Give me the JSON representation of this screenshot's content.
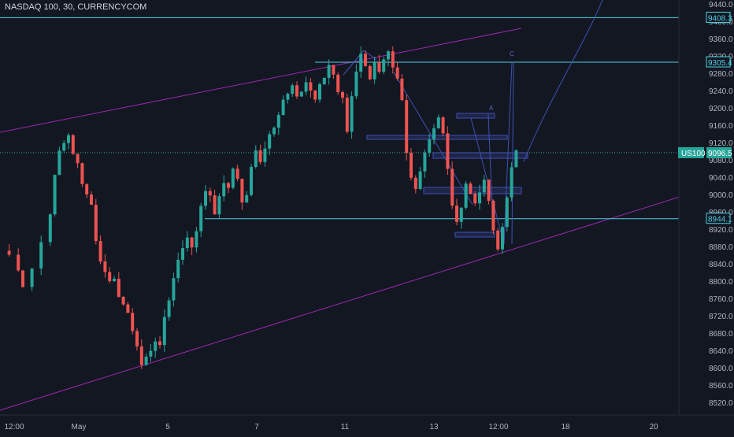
{
  "header": {
    "symbol_title": "NASDAQ 100, 30, CURRENCYCOM"
  },
  "colors": {
    "background": "#131722",
    "axis_text": "#b2b5be",
    "up_candle": "#26a69a",
    "down_candle": "#ef5350",
    "channel": "#9c27b0",
    "level_line": "#4dd0e1",
    "last_price_line": "#26a69a",
    "drawing": "#3f51b5",
    "tag_bg": "#26a69a"
  },
  "price_scale": {
    "ticks": [
      "9440.0",
      "9400.0",
      "9360.0",
      "9320.0",
      "9280.0",
      "9240.0",
      "9200.0",
      "9160.0",
      "9120.0",
      "9080.0",
      "9040.0",
      "9000.0",
      "8960.0",
      "8920.0",
      "8880.0",
      "8840.0",
      "8800.0",
      "8760.0",
      "8720.0",
      "8680.0",
      "8640.0",
      "8600.0",
      "8560.0",
      "8520.0"
    ],
    "level_tags": [
      "9408.3",
      "9305.4",
      "8944.1"
    ],
    "last_price": "9096.5",
    "symbol_tag": "US100"
  },
  "time_scale": {
    "ticks": [
      "12:00",
      "May",
      "5",
      "7",
      "11",
      "13",
      "12:00",
      "18",
      "20"
    ]
  },
  "annotations": {
    "wave_a": "A",
    "wave_c": "C"
  },
  "chart_data": {
    "type": "candlestick",
    "symbol": "NASDAQ 100",
    "interval": "30",
    "source": "CURRENCYCOM",
    "ylim": [
      8500,
      9460
    ],
    "last_price": 9096.5,
    "horizontal_levels": [
      9408.3,
      9305.4,
      8944.1
    ],
    "price_path": [
      [
        0,
        8870
      ],
      [
        2,
        8860
      ],
      [
        4,
        8830
      ],
      [
        5,
        8790
      ],
      [
        7,
        8830
      ],
      [
        9,
        8890
      ],
      [
        11,
        8960
      ],
      [
        12,
        9040
      ],
      [
        13,
        9100
      ],
      [
        14,
        9120
      ],
      [
        15,
        9140
      ],
      [
        16,
        9090
      ],
      [
        17,
        9070
      ],
      [
        18,
        9030
      ],
      [
        19,
        9000
      ],
      [
        20,
        8980
      ],
      [
        21,
        8890
      ],
      [
        22,
        8850
      ],
      [
        23,
        8820
      ],
      [
        24,
        8800
      ],
      [
        25,
        8810
      ],
      [
        26,
        8770
      ],
      [
        27,
        8740
      ],
      [
        28,
        8720
      ],
      [
        29,
        8690
      ],
      [
        30,
        8650
      ],
      [
        31,
        8600
      ],
      [
        32,
        8630
      ],
      [
        33,
        8640
      ],
      [
        34,
        8660
      ],
      [
        35,
        8650
      ],
      [
        36,
        8720
      ],
      [
        37,
        8760
      ],
      [
        38,
        8800
      ],
      [
        39,
        8850
      ],
      [
        40,
        8880
      ],
      [
        41,
        8900
      ],
      [
        42,
        8880
      ],
      [
        43,
        8920
      ],
      [
        44,
        8970
      ],
      [
        45,
        9010
      ],
      [
        46,
        9000
      ],
      [
        47,
        8960
      ],
      [
        48,
        8990
      ],
      [
        49,
        9030
      ],
      [
        50,
        9010
      ],
      [
        51,
        9060
      ],
      [
        52,
        9040
      ],
      [
        53,
        8980
      ],
      [
        54,
        9000
      ],
      [
        55,
        9060
      ],
      [
        56,
        9100
      ],
      [
        57,
        9080
      ],
      [
        58,
        9110
      ],
      [
        59,
        9140
      ],
      [
        60,
        9160
      ],
      [
        61,
        9190
      ],
      [
        62,
        9220
      ],
      [
        63,
        9230
      ],
      [
        64,
        9250
      ],
      [
        65,
        9220
      ],
      [
        66,
        9240
      ],
      [
        67,
        9260
      ],
      [
        68,
        9240
      ],
      [
        69,
        9220
      ],
      [
        70,
        9250
      ],
      [
        71,
        9270
      ],
      [
        72,
        9300
      ],
      [
        73,
        9280
      ],
      [
        74,
        9240
      ],
      [
        75,
        9220
      ],
      [
        76,
        9150
      ],
      [
        77,
        9230
      ],
      [
        78,
        9280
      ],
      [
        79,
        9320
      ],
      [
        80,
        9290
      ],
      [
        81,
        9260
      ],
      [
        82,
        9300
      ],
      [
        83,
        9280
      ],
      [
        84,
        9310
      ],
      [
        85,
        9330
      ],
      [
        86,
        9300
      ],
      [
        87,
        9270
      ],
      [
        88,
        9220
      ],
      [
        89,
        9100
      ],
      [
        90,
        9040
      ],
      [
        91,
        9010
      ],
      [
        92,
        9050
      ],
      [
        93,
        9100
      ],
      [
        94,
        9120
      ],
      [
        95,
        9160
      ],
      [
        96,
        9180
      ],
      [
        97,
        9140
      ],
      [
        98,
        9060
      ],
      [
        99,
        8980
      ],
      [
        100,
        8930
      ],
      [
        101,
        8970
      ],
      [
        102,
        9020
      ],
      [
        103,
        9000
      ],
      [
        104,
        8980
      ],
      [
        105,
        9010
      ],
      [
        106,
        9030
      ],
      [
        107,
        8980
      ],
      [
        108,
        8920
      ],
      [
        109,
        8880
      ],
      [
        110,
        8930
      ],
      [
        111,
        8990
      ],
      [
        112,
        9060
      ],
      [
        113,
        9100
      ]
    ]
  }
}
